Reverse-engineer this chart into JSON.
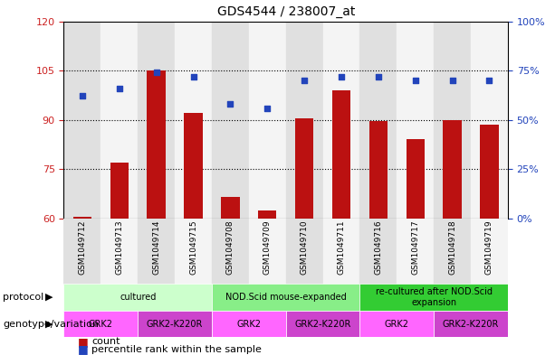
{
  "title": "GDS4544 / 238007_at",
  "samples": [
    "GSM1049712",
    "GSM1049713",
    "GSM1049714",
    "GSM1049715",
    "GSM1049708",
    "GSM1049709",
    "GSM1049710",
    "GSM1049711",
    "GSM1049716",
    "GSM1049717",
    "GSM1049718",
    "GSM1049719"
  ],
  "counts": [
    60.5,
    77.0,
    105.0,
    92.0,
    66.5,
    62.5,
    90.5,
    99.0,
    89.5,
    84.0,
    90.0,
    88.5
  ],
  "percentiles": [
    62,
    66,
    74,
    72,
    58,
    56,
    70,
    72,
    72,
    70,
    70,
    70
  ],
  "ylim_left": [
    60,
    120
  ],
  "ylim_right": [
    0,
    100
  ],
  "yticks_left": [
    60,
    75,
    90,
    105,
    120
  ],
  "yticks_right": [
    0,
    25,
    50,
    75,
    100
  ],
  "ytick_labels_left": [
    "60",
    "75",
    "90",
    "105",
    "120"
  ],
  "ytick_labels_right": [
    "0%",
    "25%",
    "50%",
    "75%",
    "100%"
  ],
  "hlines": [
    75,
    90,
    105
  ],
  "protocol_groups": [
    {
      "label": "cultured",
      "start": 0,
      "end": 3,
      "color": "#ccffcc"
    },
    {
      "label": "NOD.Scid mouse-expanded",
      "start": 4,
      "end": 7,
      "color": "#88ee88"
    },
    {
      "label": "re-cultured after NOD.Scid\nexpansion",
      "start": 8,
      "end": 11,
      "color": "#33cc33"
    }
  ],
  "genotype_groups": [
    {
      "label": "GRK2",
      "start": 0,
      "end": 1,
      "color": "#ff66ff"
    },
    {
      "label": "GRK2-K220R",
      "start": 2,
      "end": 3,
      "color": "#cc44cc"
    },
    {
      "label": "GRK2",
      "start": 4,
      "end": 5,
      "color": "#ff66ff"
    },
    {
      "label": "GRK2-K220R",
      "start": 6,
      "end": 7,
      "color": "#cc44cc"
    },
    {
      "label": "GRK2",
      "start": 8,
      "end": 9,
      "color": "#ff66ff"
    },
    {
      "label": "GRK2-K220R",
      "start": 10,
      "end": 11,
      "color": "#cc44cc"
    }
  ],
  "bar_color": "#bb1111",
  "dot_color": "#2244bb",
  "tick_color_left": "#cc2222",
  "tick_color_right": "#2244bb",
  "count_label": "count",
  "percentile_label": "percentile rank within the sample",
  "col_shade_even": "#e0e0e0",
  "col_shade_odd": "#f4f4f4"
}
